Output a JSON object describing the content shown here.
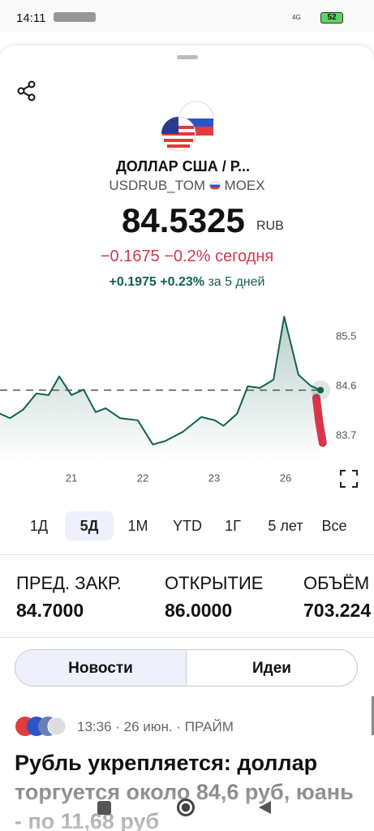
{
  "status_bar": {
    "time": "14:11",
    "network": "4G",
    "battery": "52"
  },
  "instrument": {
    "name": "ДОЛЛАР США / Р...",
    "ticker": "USDRUB_TOM",
    "exchange": "MOEX",
    "price": "84.5325",
    "currency": "RUB",
    "change_today": {
      "abs": "−0.1675",
      "pct": "−0.2%",
      "label": "сегодня"
    },
    "change_period": {
      "abs": "+0.1975",
      "pct": "+0.23%",
      "label": "за 5 дней"
    }
  },
  "chart_data": {
    "type": "line",
    "x": [
      -1.0,
      -0.86,
      -0.68,
      -0.49,
      -0.32,
      -0.17,
      0,
      0.17,
      0.34,
      0.48,
      0.68,
      0.93,
      1.14,
      1.31,
      1.56,
      1.82,
      2.01,
      2.13,
      2.32,
      2.47,
      2.64,
      2.83,
      2.98,
      3.18,
      3.35,
      3.49
    ],
    "series": [
      {
        "color": "#12614f",
        "values": [
          84.1,
          84.02,
          84.17,
          84.47,
          84.44,
          84.78,
          84.44,
          84.54,
          84.13,
          84.2,
          84.02,
          83.98,
          83.54,
          83.6,
          83.77,
          84.04,
          83.98,
          83.88,
          84.1,
          84.6,
          84.57,
          84.72,
          85.87,
          84.81,
          84.61,
          84.53
        ]
      },
      {
        "color": "#d9364a",
        "x": [
          3.43,
          3.47,
          3.52
        ],
        "values": [
          84.39,
          83.95,
          83.57
        ]
      }
    ],
    "reference_line": 84.53,
    "xlim": [
      -1,
      3.545
    ],
    "ylim": [
      83.21,
      86.02
    ],
    "xticks": [
      {
        "value": 0,
        "label": "21"
      },
      {
        "value": 1,
        "label": "22"
      },
      {
        "value": 2,
        "label": "23"
      },
      {
        "value": 3,
        "label": "26"
      }
    ],
    "yticks": [
      85.5,
      84.6,
      83.7
    ]
  },
  "ranges": {
    "items": [
      "1Д",
      "5Д",
      "1М",
      "YTD",
      "1Г",
      "5 лет",
      "Все"
    ],
    "selected": 1
  },
  "stats": [
    {
      "label": "ПРЕД. ЗАКР.",
      "value": "84.7000"
    },
    {
      "label": "ОТКРЫТИЕ",
      "value": "86.0000"
    },
    {
      "label": "ОБЪЁМ",
      "value": "703.224"
    }
  ],
  "feed_tabs": {
    "items": [
      "Новости",
      "Идеи"
    ],
    "selected": 0
  },
  "news": [
    {
      "meta": "13:36 · 26 июн. · ПРАЙМ",
      "headline": "Рубль укрепляется: доллар торгуется около 84,6 руб, юань - по 11,68 руб"
    }
  ]
}
